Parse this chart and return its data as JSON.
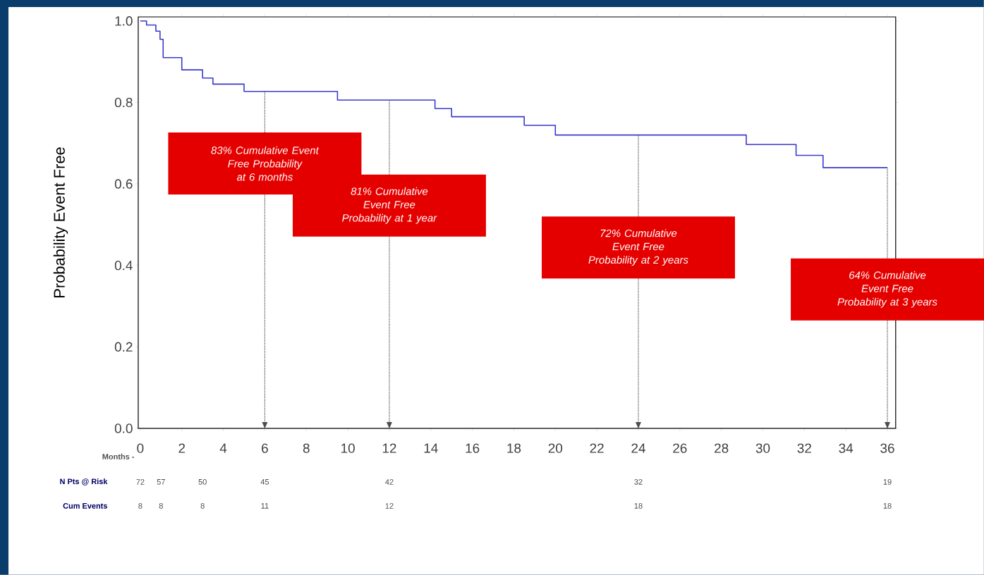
{
  "chart_data": {
    "type": "step",
    "xlabel": "Months -",
    "ylabel": "Probability Event Free",
    "series": [
      {
        "color": "#3a3acc",
        "x": [
          0,
          0.3,
          0.75,
          0.95,
          1.1,
          2.0,
          3.0,
          3.5,
          5.0,
          9.5,
          14.2,
          15.0,
          18.5,
          20.0,
          29.2,
          31.6,
          32.9,
          36
        ],
        "values": [
          1.0,
          0.99,
          0.975,
          0.955,
          0.91,
          0.88,
          0.86,
          0.845,
          0.827,
          0.806,
          0.785,
          0.765,
          0.744,
          0.72,
          0.697,
          0.67,
          0.64,
          0.64
        ]
      }
    ],
    "xlim": [
      -0.1,
      36.4
    ],
    "ylim": [
      0,
      1.01
    ],
    "xticks": [
      0,
      2,
      4,
      6,
      8,
      10,
      12,
      14,
      16,
      18,
      20,
      22,
      24,
      26,
      28,
      30,
      32,
      34,
      36
    ],
    "yticks": [
      {
        "value": 0,
        "label": "0.0"
      },
      {
        "value": 0.2,
        "label": "0.2"
      },
      {
        "value": 0.4,
        "label": "0.4"
      },
      {
        "value": 0.6,
        "label": "0.6"
      },
      {
        "value": 0.8,
        "label": "0.8"
      },
      {
        "value": 1.0,
        "label": "1.0"
      }
    ],
    "ref_lines": [
      {
        "axis": "x",
        "value": 6,
        "label": "83% Cumulative Event Free Probability at 6 months",
        "line_style": "dotted",
        "color": "#4c4c4c"
      },
      {
        "axis": "x",
        "value": 12,
        "label": "81% Cumulative Event Free Probability at 1 year",
        "line_style": "dotted",
        "color": "#4c4c4c"
      },
      {
        "axis": "x",
        "value": 24,
        "label": "72% Cumulative Event Free Probability at 2 years",
        "line_style": "dotted",
        "color": "#4c4c4c"
      },
      {
        "axis": "x",
        "value": 36,
        "label": "64% Cumulative Event Free Probability at 3 years",
        "line_style": "dotted",
        "color": "#4c4c4c"
      }
    ],
    "annotations": [
      "N Pts @ Risk",
      "72",
      "57",
      "50",
      "45",
      "42",
      "32",
      "19",
      "Cum Events",
      "8",
      "8",
      "8",
      "11",
      "12",
      "18",
      "18"
    ]
  }
}
